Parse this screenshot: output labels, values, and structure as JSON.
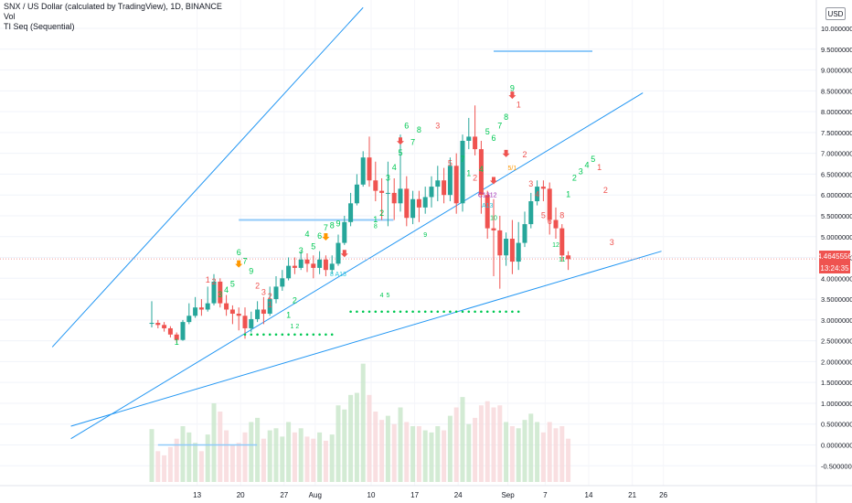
{
  "legend": {
    "symbol_line": "SNX / US Dollar (calculated by TradingView), 1D, BINANCE",
    "vol_label": "Vol",
    "indicator_label": "TI Seq (Sequential)"
  },
  "currency_badge": "USD",
  "last_price_badge": "4.4645556",
  "countdown_badge": "13:24:35",
  "colors": {
    "bull": "#26a69a",
    "bear": "#ef5350",
    "trendline": "#2196f3",
    "level": "#90caf9",
    "count_green": "#00c853",
    "count_red": "#ef5350",
    "dots": "#00c853",
    "price_line": "#ef9a9a"
  },
  "chart_data": {
    "type": "candlestick",
    "symbol": "SNX / US Dollar",
    "timeframe": "1D",
    "exchange": "BINANCE",
    "price_axis": {
      "range": [
        -0.75,
        10.55
      ],
      "ticks": [
        -0.5,
        0,
        0.5,
        1,
        1.5,
        2,
        2.5,
        3,
        3.5,
        4,
        4.5,
        5,
        5.5,
        6,
        6.5,
        7,
        7.5,
        8,
        8.5,
        9,
        9.5,
        10
      ],
      "tick_labels": [
        "-0.5000000",
        "0.0000000",
        "0.5000000",
        "1.0000000",
        "1.5000000",
        "2.0000000",
        "2.5000000",
        "3.0000000",
        "3.5000000",
        "4.0000000",
        "4.5000000",
        "5.0000000",
        "5.5000000",
        "6.0000000",
        "6.5000000",
        "7.0000000",
        "7.5000000",
        "8.0000000",
        "8.5000000",
        "9.0000000",
        "9.5000000",
        "10.0000000"
      ]
    },
    "time_axis": {
      "labels": [
        "13",
        "20",
        "27",
        "Aug",
        "10",
        "17",
        "24",
        "Sep",
        "7",
        "14",
        "21",
        "26"
      ],
      "label_day_index": [
        2,
        9,
        16,
        21,
        30,
        37,
        44,
        52,
        58,
        65,
        72,
        77
      ]
    },
    "candles": [
      [
        2.92,
        2.93,
        2.82,
        3.45,
        0.38
      ],
      [
        2.93,
        2.88,
        2.8,
        3.0,
        -0.15
      ],
      [
        2.88,
        2.8,
        2.72,
        2.95,
        -0.25
      ],
      [
        2.8,
        2.65,
        2.58,
        2.85,
        -0.05
      ],
      [
        2.65,
        2.52,
        2.45,
        2.7,
        0.15
      ],
      [
        2.52,
        2.95,
        2.5,
        3.0,
        0.45
      ],
      [
        2.95,
        3.1,
        2.9,
        3.4,
        0.3
      ],
      [
        3.1,
        3.3,
        3.05,
        3.55,
        0.05
      ],
      [
        3.3,
        3.25,
        3.1,
        3.5,
        -0.15
      ],
      [
        3.25,
        3.4,
        3.2,
        3.8,
        0.25
      ],
      [
        3.4,
        3.92,
        3.35,
        4.1,
        1.0
      ],
      [
        3.92,
        3.4,
        3.3,
        4.0,
        0.8
      ],
      [
        3.4,
        3.25,
        3.1,
        3.6,
        0.35
      ],
      [
        3.25,
        3.15,
        2.9,
        3.35,
        0.0
      ],
      [
        3.15,
        3.1,
        2.75,
        3.3,
        0.05
      ],
      [
        3.1,
        2.8,
        2.55,
        3.3,
        0.3
      ],
      [
        2.8,
        3.02,
        2.7,
        3.2,
        0.55
      ],
      [
        3.02,
        3.25,
        2.95,
        3.45,
        0.65
      ],
      [
        3.25,
        3.15,
        2.9,
        3.55,
        0.15
      ],
      [
        3.15,
        3.5,
        3.1,
        3.8,
        0.35
      ],
      [
        3.5,
        3.8,
        3.4,
        4.05,
        0.4
      ],
      [
        3.8,
        4.0,
        3.7,
        4.2,
        0.2
      ],
      [
        4.0,
        4.3,
        3.95,
        4.5,
        0.55
      ],
      [
        4.3,
        4.25,
        4.1,
        4.5,
        0.3
      ],
      [
        4.25,
        4.45,
        4.2,
        4.65,
        0.4
      ],
      [
        4.45,
        4.35,
        4.15,
        4.6,
        0.2
      ],
      [
        4.35,
        4.25,
        4.0,
        4.55,
        0.15
      ],
      [
        4.25,
        4.45,
        4.1,
        4.65,
        0.3
      ],
      [
        4.45,
        4.2,
        4.05,
        4.55,
        0.1
      ],
      [
        4.2,
        4.35,
        4.1,
        4.55,
        0.25
      ],
      [
        4.35,
        4.85,
        4.3,
        5.05,
        0.95
      ],
      [
        4.85,
        5.35,
        4.8,
        5.5,
        0.85
      ],
      [
        5.35,
        5.8,
        5.25,
        6.05,
        1.2
      ],
      [
        5.8,
        6.25,
        5.75,
        6.5,
        1.25
      ],
      [
        6.25,
        6.9,
        6.2,
        7.05,
        1.95
      ],
      [
        6.9,
        6.35,
        6.2,
        7.4,
        1.2
      ],
      [
        6.35,
        6.1,
        5.85,
        6.8,
        0.8
      ],
      [
        6.1,
        6.05,
        5.4,
        6.4,
        0.6
      ],
      [
        6.05,
        6.05,
        5.25,
        6.8,
        0.7
      ],
      [
        6.05,
        5.8,
        5.4,
        6.4,
        0.5
      ],
      [
        5.8,
        6.15,
        5.6,
        7.45,
        0.9
      ],
      [
        6.15,
        5.45,
        5.25,
        6.45,
        0.55
      ],
      [
        5.45,
        5.9,
        5.3,
        6.1,
        0.45
      ],
      [
        5.9,
        5.7,
        5.35,
        6.1,
        0.45
      ],
      [
        5.7,
        5.95,
        5.55,
        6.2,
        0.35
      ],
      [
        5.95,
        6.2,
        5.7,
        6.45,
        0.3
      ],
      [
        6.2,
        6.35,
        5.85,
        6.7,
        0.45
      ],
      [
        6.35,
        6.0,
        5.8,
        6.65,
        0.35
      ],
      [
        6.0,
        6.7,
        5.85,
        6.9,
        0.7
      ],
      [
        6.7,
        5.8,
        5.55,
        7.0,
        0.9
      ],
      [
        5.8,
        7.3,
        5.6,
        7.45,
        1.15
      ],
      [
        7.3,
        7.4,
        7.1,
        7.85,
        0.5
      ],
      [
        7.4,
        7.1,
        6.95,
        8.15,
        0.65
      ],
      [
        7.1,
        6.0,
        5.55,
        7.3,
        0.95
      ],
      [
        6.0,
        5.2,
        4.95,
        6.1,
        1.05
      ],
      [
        5.2,
        5.15,
        4.05,
        5.9,
        0.9
      ],
      [
        5.15,
        4.55,
        3.75,
        5.5,
        0.95
      ],
      [
        4.55,
        4.95,
        4.3,
        5.1,
        0.55
      ],
      [
        4.95,
        4.4,
        4.1,
        5.4,
        0.45
      ],
      [
        4.4,
        4.85,
        4.2,
        5.35,
        0.4
      ],
      [
        4.85,
        5.3,
        4.75,
        5.6,
        0.6
      ],
      [
        5.3,
        5.85,
        5.2,
        6.05,
        0.75
      ],
      [
        5.85,
        6.2,
        5.75,
        6.35,
        0.55
      ],
      [
        6.2,
        6.15,
        5.85,
        6.35,
        0.3
      ],
      [
        6.15,
        5.4,
        5.05,
        6.3,
        0.55
      ],
      [
        5.4,
        5.2,
        4.95,
        5.7,
        0.4
      ],
      [
        5.2,
        4.55,
        4.4,
        5.3,
        0.45
      ],
      [
        4.55,
        4.46,
        4.2,
        4.65,
        0.15
      ]
    ],
    "tdseq_counts": [
      {
        "d": 4,
        "t": "1",
        "c": "green",
        "p": 2.4
      },
      {
        "d": 9,
        "t": "1",
        "c": "red",
        "p": 3.9
      },
      {
        "d": 10,
        "t": "2",
        "c": "red",
        "p": 3.85
      },
      {
        "d": 11,
        "t": "3",
        "c": "green",
        "p": 3.55
      },
      {
        "d": 12,
        "t": "4",
        "c": "green",
        "p": 3.65
      },
      {
        "d": 13,
        "t": "5",
        "c": "green",
        "p": 3.8
      },
      {
        "d": 14,
        "t": "6",
        "c": "green",
        "p": 4.55
      },
      {
        "d": 15,
        "t": "7",
        "c": "green",
        "p": 4.35
      },
      {
        "d": 16,
        "t": "9",
        "c": "green",
        "p": 4.1
      },
      {
        "d": 17,
        "t": "2",
        "c": "red",
        "p": 3.75
      },
      {
        "d": 18,
        "t": "3",
        "c": "red",
        "p": 3.6
      },
      {
        "d": 19,
        "t": "2",
        "c": "red",
        "p": 3.5
      },
      {
        "d": 19,
        "t": "1",
        "c": "red",
        "p": 3.3
      },
      {
        "d": 22,
        "t": "1",
        "c": "green",
        "p": 3.05
      },
      {
        "d": 23,
        "t": "2",
        "c": "green",
        "p": 3.4
      },
      {
        "d": 24,
        "t": "3",
        "c": "green",
        "p": 4.6
      },
      {
        "d": 25,
        "t": "4",
        "c": "green",
        "p": 5.0
      },
      {
        "d": 26,
        "t": "5",
        "c": "green",
        "p": 4.7
      },
      {
        "d": 27,
        "t": "6",
        "c": "green",
        "p": 4.95
      },
      {
        "d": 28,
        "t": "7",
        "c": "green",
        "p": 5.15
      },
      {
        "d": 29,
        "t": "8",
        "c": "green",
        "p": 5.2
      },
      {
        "d": 30,
        "t": "9",
        "c": "green",
        "p": 5.25
      },
      {
        "d": 36,
        "t": "1",
        "c": "green",
        "p": 5.35
      },
      {
        "d": 37,
        "t": "2",
        "c": "green",
        "p": 5.5
      },
      {
        "d": 38,
        "t": "3",
        "c": "green",
        "p": 6.35
      },
      {
        "d": 39,
        "t": "4",
        "c": "green",
        "p": 6.6
      },
      {
        "d": 40,
        "t": "5",
        "c": "green",
        "p": 6.95
      },
      {
        "d": 41,
        "t": "6",
        "c": "green",
        "p": 7.6
      },
      {
        "d": 42,
        "t": "7",
        "c": "green",
        "p": 7.2
      },
      {
        "d": 43,
        "t": "8",
        "c": "green",
        "p": 7.5
      },
      {
        "d": 46,
        "t": "3",
        "c": "red",
        "p": 7.6
      },
      {
        "d": 48,
        "t": "5",
        "c": "red",
        "p": 6.7
      },
      {
        "d": 49,
        "t": "6",
        "c": "red",
        "p": 6.3
      },
      {
        "d": 50,
        "t": "7",
        "c": "green",
        "p": 6.8
      },
      {
        "d": 51,
        "t": "1",
        "c": "green",
        "p": 6.45
      },
      {
        "d": 52,
        "t": "2",
        "c": "red",
        "p": 6.35
      },
      {
        "d": 53,
        "t": "4",
        "c": "green",
        "p": 6.55
      },
      {
        "d": 54,
        "t": "5",
        "c": "green",
        "p": 7.45
      },
      {
        "d": 55,
        "t": "6",
        "c": "green",
        "p": 7.3
      },
      {
        "d": 56,
        "t": "7",
        "c": "green",
        "p": 7.6
      },
      {
        "d": 57,
        "t": "8",
        "c": "green",
        "p": 7.8
      },
      {
        "d": 58,
        "t": "9",
        "c": "green",
        "p": 8.5
      },
      {
        "d": 59,
        "t": "1",
        "c": "red",
        "p": 8.1
      },
      {
        "d": 60,
        "t": "2",
        "c": "red",
        "p": 6.9
      },
      {
        "d": 61,
        "t": "3",
        "c": "red",
        "p": 6.2
      },
      {
        "d": 62,
        "t": "4",
        "c": "red",
        "p": 5.95
      },
      {
        "d": 63,
        "t": "5",
        "c": "red",
        "p": 5.45
      },
      {
        "d": 64,
        "t": "6",
        "c": "red",
        "p": 5.3
      },
      {
        "d": 65,
        "t": "7",
        "c": "red",
        "p": 5.2
      },
      {
        "d": 66,
        "t": "8",
        "c": "red",
        "p": 5.45
      },
      {
        "d": 67,
        "t": "1",
        "c": "green",
        "p": 5.95
      },
      {
        "d": 68,
        "t": "2",
        "c": "green",
        "p": 6.35
      },
      {
        "d": 69,
        "t": "3",
        "c": "green",
        "p": 6.5
      },
      {
        "d": 70,
        "t": "4",
        "c": "green",
        "p": 6.65
      },
      {
        "d": 71,
        "t": "5",
        "c": "green",
        "p": 6.8
      },
      {
        "d": 72,
        "t": "1",
        "c": "red",
        "p": 6.6
      },
      {
        "d": 73,
        "t": "2",
        "c": "red",
        "p": 6.05
      },
      {
        "d": 74,
        "t": "3",
        "c": "red",
        "p": 4.8
      }
    ],
    "tdseq_annotations": [
      {
        "d": 30,
        "t": "8 A13",
        "c": "cyan",
        "p": 4.05
      },
      {
        "d": 54,
        "t": "C1312",
        "c": "purple",
        "p": 5.95
      },
      {
        "d": 54,
        "t": "A13",
        "c": "cyan",
        "p": 5.7
      },
      {
        "d": 55,
        "t": "10",
        "c": "green",
        "p": 5.4
      },
      {
        "d": 44,
        "t": "9",
        "c": "green",
        "p": 5.0
      },
      {
        "d": 58,
        "t": "5/1",
        "c": "orange",
        "p": 6.6
      },
      {
        "d": 65,
        "t": "12",
        "c": "green",
        "p": 4.75
      },
      {
        "d": 66,
        "t": "11",
        "c": "green",
        "p": 4.4
      },
      {
        "d": 37,
        "t": "4",
        "c": "green",
        "p": 3.55
      },
      {
        "d": 38,
        "t": "5",
        "c": "green",
        "p": 3.55
      },
      {
        "d": 36,
        "t": "8",
        "c": "green",
        "p": 5.2
      },
      {
        "d": 23,
        "t": "1 2",
        "c": "green",
        "p": 2.8
      }
    ],
    "arrows": [
      {
        "d": 14,
        "dir": "down",
        "c": "orange",
        "p": 4.3
      },
      {
        "d": 28,
        "dir": "down",
        "c": "orange",
        "p": 4.95
      },
      {
        "d": 31,
        "dir": "down",
        "c": "red",
        "p": 4.55
      },
      {
        "d": 40,
        "dir": "down",
        "c": "red",
        "p": 7.25
      },
      {
        "d": 55,
        "dir": "down",
        "c": "red",
        "p": 6.3
      },
      {
        "d": 57,
        "dir": "down",
        "c": "red",
        "p": 6.95
      },
      {
        "d": 58,
        "dir": "down",
        "c": "red",
        "p": 8.35
      }
    ],
    "support_dots": [
      {
        "from": 15,
        "to": 29,
        "p": 2.65
      },
      {
        "from": 32,
        "to": 59,
        "p": 3.2
      }
    ],
    "levels": [
      {
        "from": 14,
        "to": 33,
        "p": 5.4
      },
      {
        "from": 55,
        "to": 65,
        "p": 9.45
      }
    ],
    "trendlines": [
      {
        "d1": -16,
        "p1": 2.35,
        "d2": 34,
        "p2": 10.5
      },
      {
        "d1": -13,
        "p1": 0.15,
        "d2": 79,
        "p2": 8.45
      },
      {
        "d1": -13,
        "p1": 0.45,
        "d2": 82,
        "p2": 4.65
      }
    ],
    "volume_level": {
      "from": 1,
      "to": 14,
      "v": 0.0
    },
    "last_price": 4.4645556
  }
}
